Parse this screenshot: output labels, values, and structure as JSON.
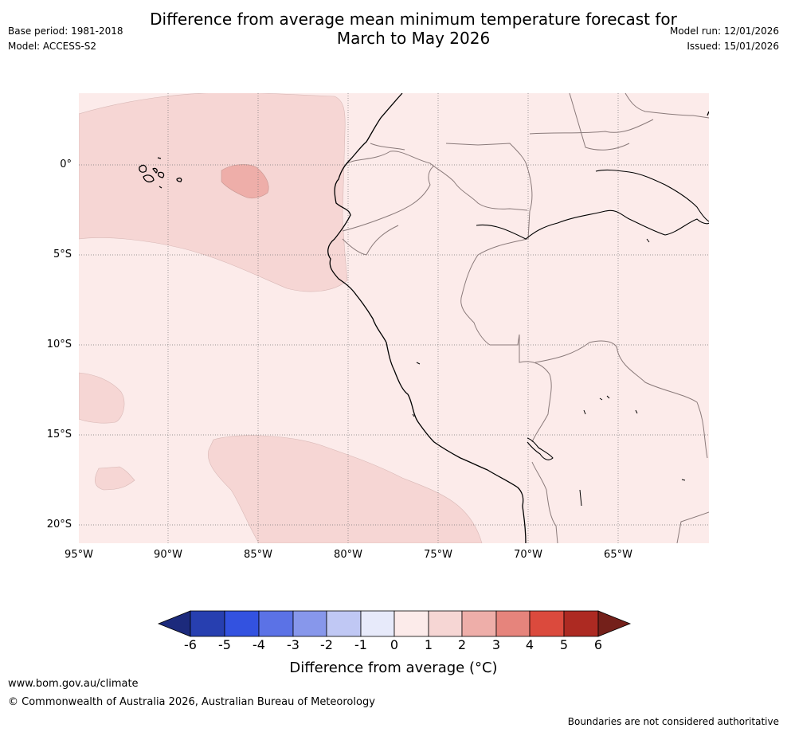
{
  "header": {
    "title_line1": "Difference from average mean minimum temperature forecast for",
    "title_line2": "March to May 2026",
    "base_period": "Base period: 1981-2018",
    "model": "Model: ACCESS-S2",
    "model_run": "Model run: 12/01/2026",
    "issued": "Issued: 15/01/2026"
  },
  "map": {
    "lat_labels": [
      "0°",
      "5°S",
      "10°S",
      "15°S",
      "20°S"
    ],
    "lon_labels": [
      "95°W",
      "90°W",
      "85°W",
      "80°W",
      "75°W",
      "70°W",
      "65°W"
    ],
    "colors": {
      "bg": "#fcebea",
      "class_1_2": "#f6d6d4",
      "class_2_3": "#eeaea9",
      "coast": "#000000",
      "border": "#8a7a7a",
      "grid": "#777777"
    }
  },
  "colorbar": {
    "ticks": [
      "-6",
      "-5",
      "-4",
      "-3",
      "-2",
      "-1",
      "0",
      "1",
      "2",
      "3",
      "4",
      "5",
      "6"
    ],
    "colors": [
      "#1c2a7c",
      "#273fb0",
      "#3352e0",
      "#5b72e6",
      "#8797eb",
      "#c0c8f4",
      "#e7eafa",
      "#fcebea",
      "#f6d6d4",
      "#eeaea9",
      "#e6847c",
      "#db4a3d",
      "#ad2a22",
      "#74201a"
    ],
    "label": "Difference from average (°C)"
  },
  "footer": {
    "url": "www.bom.gov.au/climate",
    "copyright": "© Commonwealth of Australia 2026, Australian Bureau of Meteorology",
    "note": "Boundaries are not considered authoritative"
  }
}
